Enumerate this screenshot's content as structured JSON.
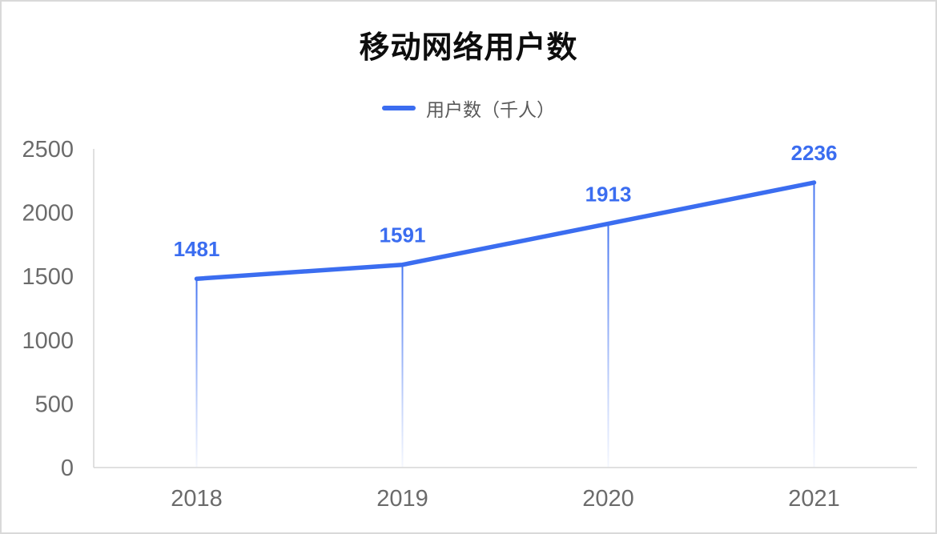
{
  "page": {
    "background": "#ffffff",
    "border_color": "#d9d9d9"
  },
  "chart_data": {
    "type": "line",
    "title": "移动网络用户数",
    "legend": {
      "label": "用户数（千人）",
      "position": "top"
    },
    "categories": [
      "2018",
      "2019",
      "2020",
      "2021"
    ],
    "series": [
      {
        "name": "用户数（千人）",
        "values": [
          1481,
          1591,
          1913,
          2236
        ]
      }
    ],
    "data_labels": [
      "1481",
      "1591",
      "1913",
      "2236"
    ],
    "ylim": [
      0,
      2500
    ],
    "yticks": [
      0,
      500,
      1000,
      1500,
      2000,
      2500
    ],
    "grid": false,
    "drop_lines": "gradient-fade-to-axis",
    "colors": {
      "line": "#3b6df0",
      "data_label": "#3b6df0",
      "axis_line": "#d6d6d6",
      "tick_label": "#6b6b6b",
      "title": "#0d0d0d",
      "legend_text": "#595959"
    }
  }
}
